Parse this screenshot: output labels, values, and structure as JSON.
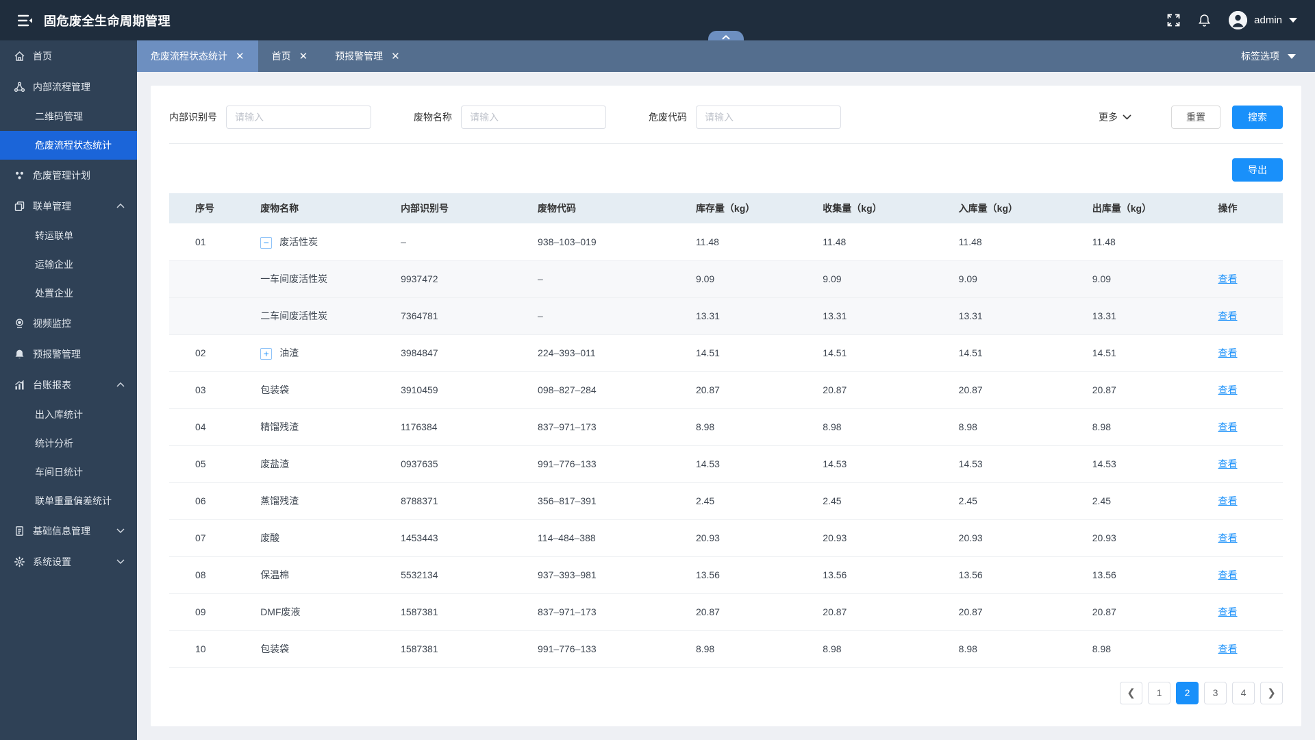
{
  "colors": {
    "accent": "#1990fa",
    "navbar_bg": "#1f2d3d",
    "sidebar_bg": "#2f4156",
    "sidebar_active_bg": "#1b65d9",
    "tabbar_bg": "#546e8e",
    "tab_active_bg": "#6d8fc0",
    "table_header_bg": "#e5edf3"
  },
  "navbar": {
    "title": "固危废全生命周期管理",
    "username": "admin"
  },
  "tabs": {
    "items": [
      {
        "label": "危废流程状态统计",
        "active": true
      },
      {
        "label": "首页",
        "active": false
      },
      {
        "label": "预报警管理",
        "active": false
      }
    ],
    "options_label": "标签选项"
  },
  "sidebar": {
    "items": [
      {
        "name": "home",
        "icon": "home",
        "label": "首页"
      },
      {
        "name": "internal-process",
        "icon": "flow",
        "label": "内部流程管理",
        "children": [
          {
            "name": "qrcode-management",
            "label": "二维码管理",
            "active": false
          },
          {
            "name": "waste-flow-status",
            "label": "危废流程状态统计",
            "active": true
          }
        ]
      },
      {
        "name": "waste-plan",
        "icon": "plan",
        "label": "危废管理计划"
      },
      {
        "name": "manifest-management",
        "icon": "manifest",
        "label": "联单管理",
        "chevron": "up",
        "children": [
          {
            "name": "transfer-manifest",
            "label": "转运联单",
            "active": false
          },
          {
            "name": "transport-company",
            "label": "运输企业",
            "active": false
          },
          {
            "name": "disposal-company",
            "label": "处置企业",
            "active": false
          }
        ]
      },
      {
        "name": "video-monitor",
        "icon": "video",
        "label": "视频监控"
      },
      {
        "name": "alarm-management",
        "icon": "alarm",
        "label": "预报警管理"
      },
      {
        "name": "ledger-report",
        "icon": "report",
        "label": "台账报表",
        "chevron": "up",
        "children": [
          {
            "name": "inout-statistics",
            "label": "出入库统计",
            "active": false
          },
          {
            "name": "statistic-analysis",
            "label": "统计分析",
            "active": false
          },
          {
            "name": "workshop-daily",
            "label": "车间日统计",
            "active": false
          },
          {
            "name": "manifest-weight-deviation",
            "label": "联单重量偏差统计",
            "active": false
          }
        ]
      },
      {
        "name": "basic-info",
        "icon": "info",
        "label": "基础信息管理",
        "chevron": "down"
      },
      {
        "name": "system-settings",
        "icon": "settings",
        "label": "系统设置",
        "chevron": "down"
      }
    ]
  },
  "search": {
    "fields": [
      {
        "label": "内部识别号",
        "placeholder": "请输入"
      },
      {
        "label": "废物名称",
        "placeholder": "请输入"
      },
      {
        "label": "危废代码",
        "placeholder": "请输入"
      }
    ],
    "more_label": "更多",
    "reset_label": "重置",
    "search_label": "搜索"
  },
  "toolbar": {
    "export_label": "导出"
  },
  "table": {
    "columns": [
      "序号",
      "废物名称",
      "内部识别号",
      "废物代码",
      "库存量（kg）",
      "收集量（kg）",
      "入库量（kg）",
      "出库量（kg）",
      "操作"
    ],
    "view_label": "查看",
    "rows": [
      {
        "no": "01",
        "expand": "minus",
        "sub": false,
        "name": "废活性炭",
        "iid": "–",
        "code": "938–103–019",
        "stock": "11.48",
        "collect": "11.48",
        "inbound": "11.48",
        "outbound": "11.48",
        "view": false
      },
      {
        "no": "",
        "expand": null,
        "sub": true,
        "name": "一车间废活性炭",
        "iid": "9937472",
        "code": "–",
        "stock": "9.09",
        "collect": "9.09",
        "inbound": "9.09",
        "outbound": "9.09",
        "view": true
      },
      {
        "no": "",
        "expand": null,
        "sub": true,
        "name": "二车间废活性炭",
        "iid": "7364781",
        "code": "–",
        "stock": "13.31",
        "collect": "13.31",
        "inbound": "13.31",
        "outbound": "13.31",
        "view": true
      },
      {
        "no": "02",
        "expand": "plus",
        "sub": false,
        "name": "油渣",
        "iid": "3984847",
        "code": "224–393–011",
        "stock": "14.51",
        "collect": "14.51",
        "inbound": "14.51",
        "outbound": "14.51",
        "view": true
      },
      {
        "no": "03",
        "expand": null,
        "sub": false,
        "name": "包装袋",
        "iid": "3910459",
        "code": "098–827–284",
        "stock": "20.87",
        "collect": "20.87",
        "inbound": "20.87",
        "outbound": "20.87",
        "view": true
      },
      {
        "no": "04",
        "expand": null,
        "sub": false,
        "name": "精馏残渣",
        "iid": "1176384",
        "code": "837–971–173",
        "stock": "8.98",
        "collect": "8.98",
        "inbound": "8.98",
        "outbound": "8.98",
        "view": true
      },
      {
        "no": "05",
        "expand": null,
        "sub": false,
        "name": "废盐渣",
        "iid": "0937635",
        "code": "991–776–133",
        "stock": "14.53",
        "collect": "14.53",
        "inbound": "14.53",
        "outbound": "14.53",
        "view": true
      },
      {
        "no": "06",
        "expand": null,
        "sub": false,
        "name": "蒸馏残渣",
        "iid": "8788371",
        "code": "356–817–391",
        "stock": "2.45",
        "collect": "2.45",
        "inbound": "2.45",
        "outbound": "2.45",
        "view": true
      },
      {
        "no": "07",
        "expand": null,
        "sub": false,
        "name": "废酸",
        "iid": "1453443",
        "code": "114–484–388",
        "stock": "20.93",
        "collect": "20.93",
        "inbound": "20.93",
        "outbound": "20.93",
        "view": true
      },
      {
        "no": "08",
        "expand": null,
        "sub": false,
        "name": "保温棉",
        "iid": "5532134",
        "code": "937–393–981",
        "stock": "13.56",
        "collect": "13.56",
        "inbound": "13.56",
        "outbound": "13.56",
        "view": true
      },
      {
        "no": "09",
        "expand": null,
        "sub": false,
        "name": "DMF废液",
        "iid": "1587381",
        "code": "837–971–173",
        "stock": "20.87",
        "collect": "20.87",
        "inbound": "20.87",
        "outbound": "20.87",
        "view": true
      },
      {
        "no": "10",
        "expand": null,
        "sub": false,
        "name": "包装袋",
        "iid": "1587381",
        "code": "991–776–133",
        "stock": "8.98",
        "collect": "8.98",
        "inbound": "8.98",
        "outbound": "8.98",
        "view": true
      }
    ]
  },
  "pagination": {
    "pages": [
      "1",
      "2",
      "3",
      "4"
    ],
    "active": "2"
  }
}
